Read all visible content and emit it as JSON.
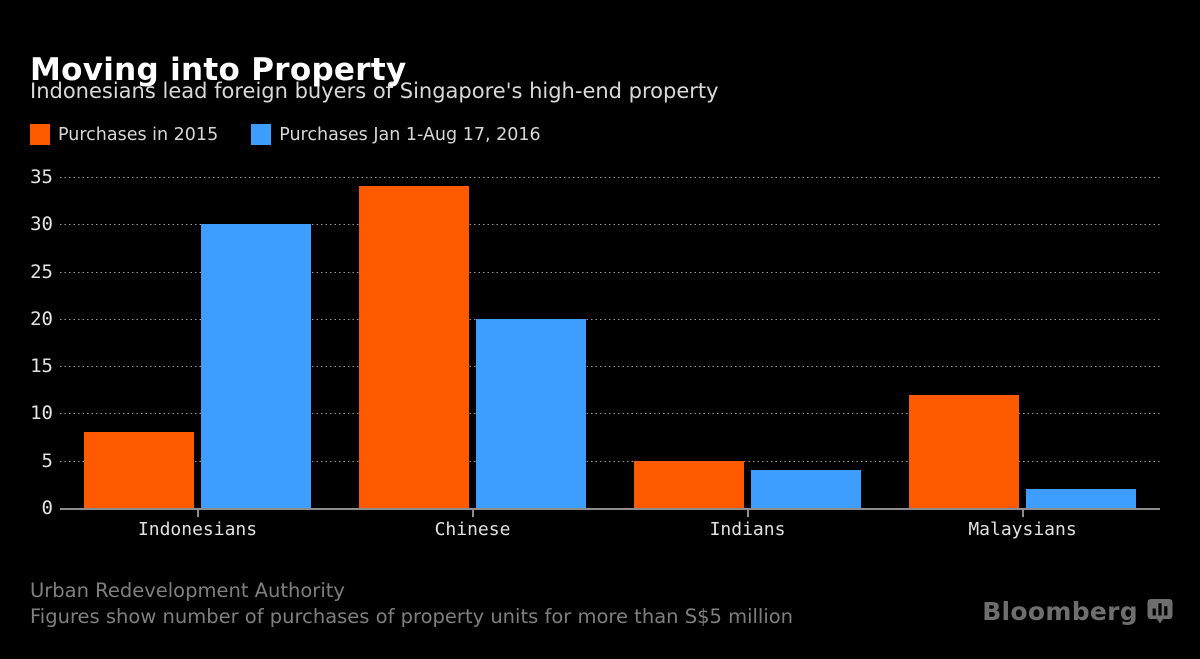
{
  "header": {
    "title": "Moving into Property",
    "subtitle": "Indonesians lead foreign buyers of Singapore's high-end property"
  },
  "legend": {
    "items": [
      {
        "label": "Purchases in 2015",
        "color": "#FF5A00"
      },
      {
        "label": "Purchases Jan 1-Aug 17, 2016",
        "color": "#3D9EFF"
      }
    ]
  },
  "chart_data": {
    "type": "bar",
    "title": "Moving into Property",
    "subtitle": "Indonesians lead foreign buyers of Singapore's high-end property",
    "categories": [
      "Indonesians",
      "Chinese",
      "Indians",
      "Malaysians"
    ],
    "series": [
      {
        "name": "Purchases in 2015",
        "color": "#FF5A00",
        "values": [
          8,
          34,
          5,
          12
        ]
      },
      {
        "name": "Purchases Jan 1-Aug 17, 2016",
        "color": "#3D9EFF",
        "values": [
          30,
          20,
          4,
          2
        ]
      }
    ],
    "ylim": [
      0,
      35
    ],
    "yticks": [
      0,
      5,
      10,
      15,
      20,
      25,
      30,
      35
    ],
    "grid": "horizontal-dotted",
    "legend_position": "top-left"
  },
  "footer": {
    "source": "Urban Redevelopment Authority",
    "note": "Figures show number of purchases of property units for more than S$5 million",
    "brand": "Bloomberg"
  },
  "colors": {
    "background": "#000000",
    "axis": "#8D8D8D",
    "grid": "#969696",
    "text_primary": "#FFFFFF",
    "text_secondary": "#D9D9D9",
    "text_muted": "#7F7F7F",
    "logo": "#6E6E6E"
  }
}
